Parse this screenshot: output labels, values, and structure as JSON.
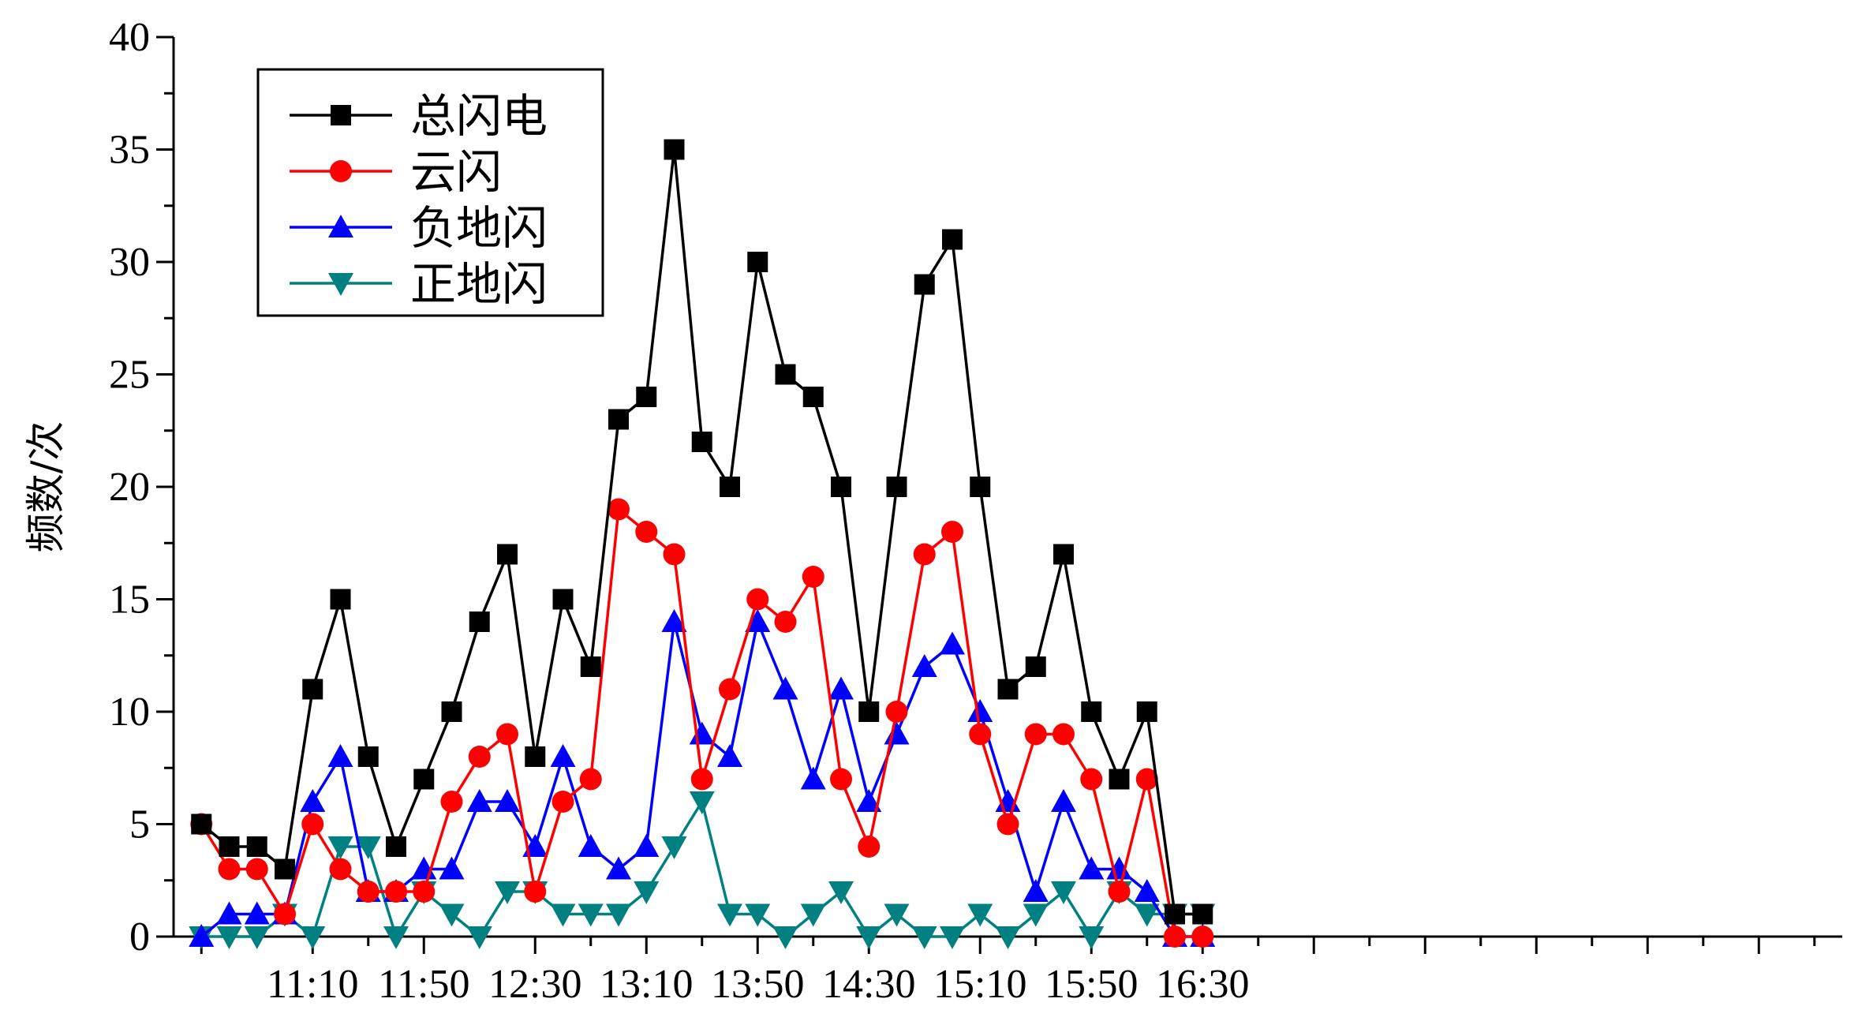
{
  "chart_data": {
    "type": "line",
    "title": "",
    "xlabel": "",
    "ylabel": "频数/次",
    "ylim": [
      0,
      40
    ],
    "y_major_ticks": [
      0,
      5,
      10,
      15,
      20,
      25,
      30,
      35,
      40
    ],
    "x_labels": [
      "11:10",
      "11:50",
      "12:30",
      "13:10",
      "13:50",
      "14:30",
      "15:10",
      "15:50",
      "16:30"
    ],
    "x_label_positions": [
      4,
      8,
      12,
      16,
      20,
      24,
      28,
      32,
      36
    ],
    "x_start": "10:30",
    "x_step_minutes": 10,
    "grid": false,
    "legend_position": "top-left",
    "series": [
      {
        "name": "总闪电",
        "color": "#000000",
        "marker": "square",
        "values": [
          5,
          4,
          4,
          3,
          11,
          15,
          8,
          4,
          7,
          10,
          14,
          17,
          8,
          15,
          12,
          23,
          24,
          35,
          22,
          20,
          30,
          25,
          24,
          20,
          10,
          20,
          29,
          31,
          20,
          11,
          12,
          17,
          10,
          7,
          10,
          1,
          1
        ]
      },
      {
        "name": "云闪",
        "color": "#ff0000",
        "marker": "circle",
        "values": [
          5,
          3,
          3,
          1,
          5,
          3,
          2,
          2,
          2,
          6,
          8,
          9,
          2,
          6,
          7,
          19,
          18,
          17,
          7,
          11,
          15,
          14,
          16,
          7,
          4,
          10,
          17,
          18,
          9,
          5,
          9,
          9,
          7,
          2,
          7,
          0,
          0
        ]
      },
      {
        "name": "负地闪",
        "color": "#0000ff",
        "marker": "triangle-up",
        "values": [
          0,
          1,
          1,
          1,
          6,
          8,
          2,
          2,
          3,
          3,
          6,
          6,
          4,
          8,
          4,
          3,
          4,
          14,
          9,
          8,
          14,
          11,
          7,
          11,
          6,
          9,
          12,
          13,
          10,
          6,
          2,
          6,
          3,
          3,
          2,
          0,
          0
        ]
      },
      {
        "name": "正地闪",
        "color": "#008080",
        "marker": "triangle-down",
        "values": [
          0,
          0,
          0,
          1,
          0,
          4,
          4,
          0,
          2,
          1,
          0,
          2,
          2,
          1,
          1,
          1,
          2,
          4,
          6,
          1,
          1,
          0,
          1,
          2,
          0,
          1,
          0,
          0,
          1,
          0,
          1,
          2,
          0,
          2,
          1,
          1,
          1
        ]
      }
    ]
  }
}
